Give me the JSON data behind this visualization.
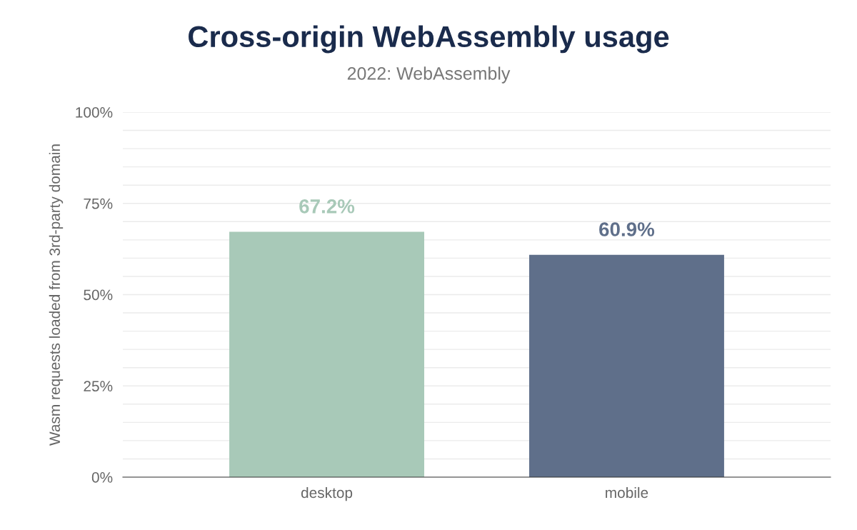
{
  "chart_data": {
    "type": "bar",
    "title": "Cross-origin WebAssembly usage",
    "subtitle": "2022: WebAssembly",
    "ylabel": "Wasm requests loaded from 3rd-party domain",
    "categories": [
      "desktop",
      "mobile"
    ],
    "values": [
      67.2,
      60.9
    ],
    "colors": [
      "#a8c9b8",
      "#5f6f8a"
    ],
    "value_labels": [
      "67.2%",
      "60.9%"
    ],
    "ylim": [
      0,
      100
    ],
    "yticks": [
      {
        "value": 0,
        "label": "0%"
      },
      {
        "value": 5,
        "label": null
      },
      {
        "value": 10,
        "label": null
      },
      {
        "value": 15,
        "label": null
      },
      {
        "value": 20,
        "label": null
      },
      {
        "value": 25,
        "label": "25%"
      },
      {
        "value": 30,
        "label": null
      },
      {
        "value": 35,
        "label": null
      },
      {
        "value": 40,
        "label": null
      },
      {
        "value": 45,
        "label": null
      },
      {
        "value": 50,
        "label": "50%"
      },
      {
        "value": 55,
        "label": null
      },
      {
        "value": 60,
        "label": null
      },
      {
        "value": 65,
        "label": null
      },
      {
        "value": 70,
        "label": null
      },
      {
        "value": 75,
        "label": "75%"
      },
      {
        "value": 80,
        "label": null
      },
      {
        "value": 85,
        "label": null
      },
      {
        "value": 90,
        "label": null
      },
      {
        "value": 95,
        "label": null
      },
      {
        "value": 100,
        "label": "100%"
      }
    ],
    "grid": "y"
  }
}
